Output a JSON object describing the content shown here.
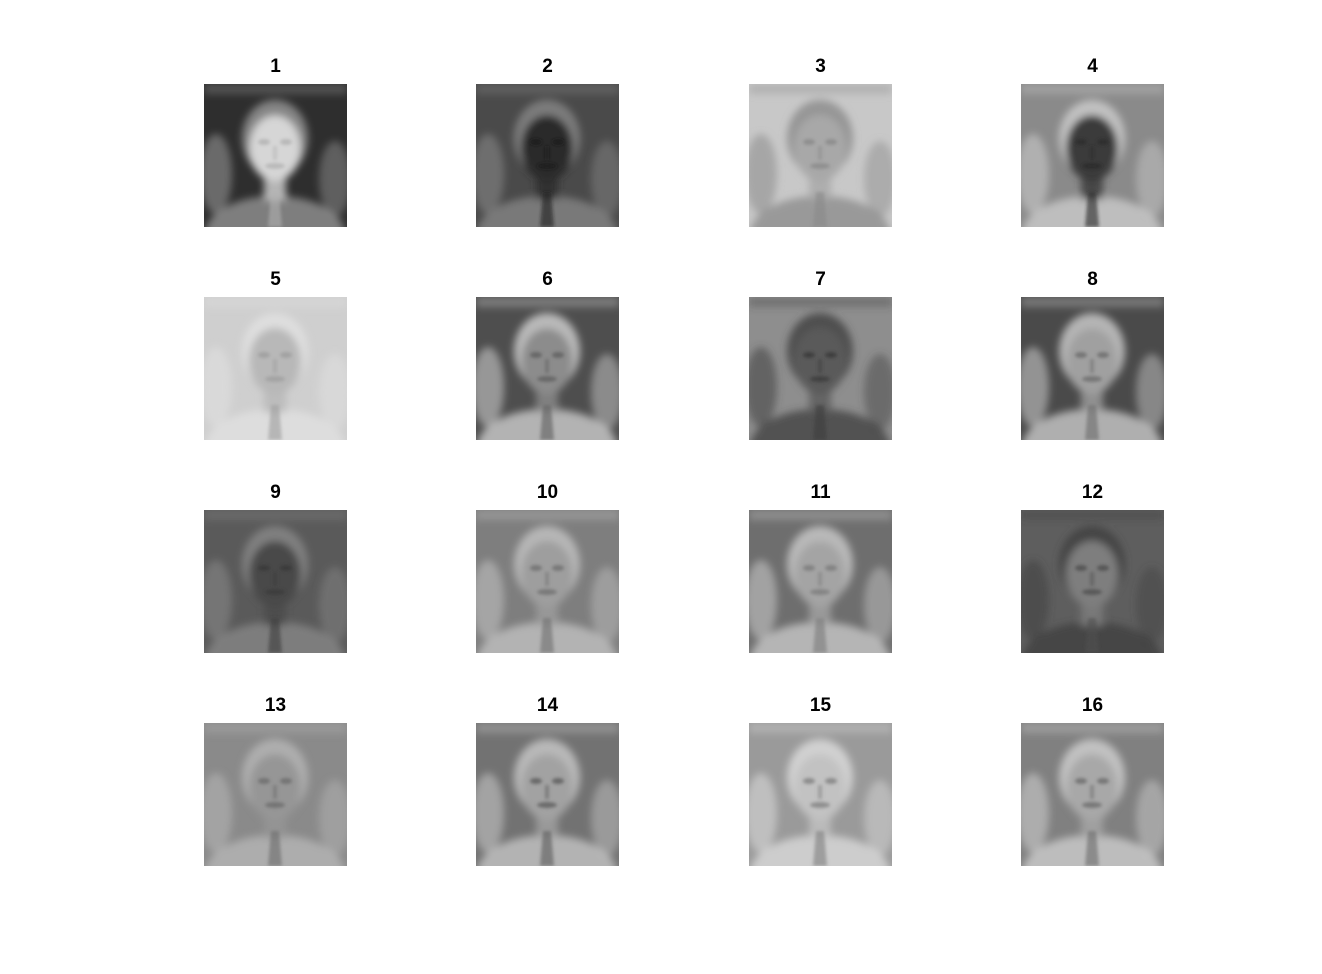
{
  "panels": [
    {
      "label": "1",
      "tone": "#2e2e2e",
      "face": "#d6d6d6",
      "edge": "#9a9a9a",
      "feat": "#b0b0b0"
    },
    {
      "label": "2",
      "tone": "#4a4a4a",
      "face": "#2a2a2a",
      "edge": "#8a8a8a",
      "feat": "#1a1a1a"
    },
    {
      "label": "3",
      "tone": "#c8c8c8",
      "face": "#a8a8a8",
      "edge": "#8a8a8a",
      "feat": "#888888"
    },
    {
      "label": "4",
      "tone": "#8a8a8a",
      "face": "#3a3a3a",
      "edge": "#cfcfcf",
      "feat": "#2a2a2a"
    },
    {
      "label": "5",
      "tone": "#cfcfcf",
      "face": "#b8b8b8",
      "edge": "#e2e2e2",
      "feat": "#9c9c9c"
    },
    {
      "label": "6",
      "tone": "#4e4e4e",
      "face": "#8c8c8c",
      "edge": "#d4d4d4",
      "feat": "#5e5e5e"
    },
    {
      "label": "7",
      "tone": "#8e8e8e",
      "face": "#5a5a5a",
      "edge": "#3e3e3e",
      "feat": "#3a3a3a"
    },
    {
      "label": "8",
      "tone": "#4a4a4a",
      "face": "#a0a0a0",
      "edge": "#d0d0d0",
      "feat": "#6a6a6a"
    },
    {
      "label": "9",
      "tone": "#5a5a5a",
      "face": "#4a4a4a",
      "edge": "#8a8a8a",
      "feat": "#3a3a3a"
    },
    {
      "label": "10",
      "tone": "#7e7e7e",
      "face": "#9e9e9e",
      "edge": "#c4c4c4",
      "feat": "#6e6e6e"
    },
    {
      "label": "11",
      "tone": "#6e6e6e",
      "face": "#a4a4a4",
      "edge": "#cccccc",
      "feat": "#7a7a7a"
    },
    {
      "label": "12",
      "tone": "#5e5e5e",
      "face": "#7e7e7e",
      "edge": "#3e3e3e",
      "feat": "#4e4e4e"
    },
    {
      "label": "13",
      "tone": "#8a8a8a",
      "face": "#969696",
      "edge": "#b8b8b8",
      "feat": "#6a6a6a"
    },
    {
      "label": "14",
      "tone": "#727272",
      "face": "#a2a2a2",
      "edge": "#cacaca",
      "feat": "#5a5a5a"
    },
    {
      "label": "15",
      "tone": "#9a9a9a",
      "face": "#c2c2c2",
      "edge": "#dedede",
      "feat": "#7e7e7e"
    },
    {
      "label": "16",
      "tone": "#808080",
      "face": "#a8a8a8",
      "edge": "#d2d2d2",
      "feat": "#6a6a6a"
    }
  ]
}
